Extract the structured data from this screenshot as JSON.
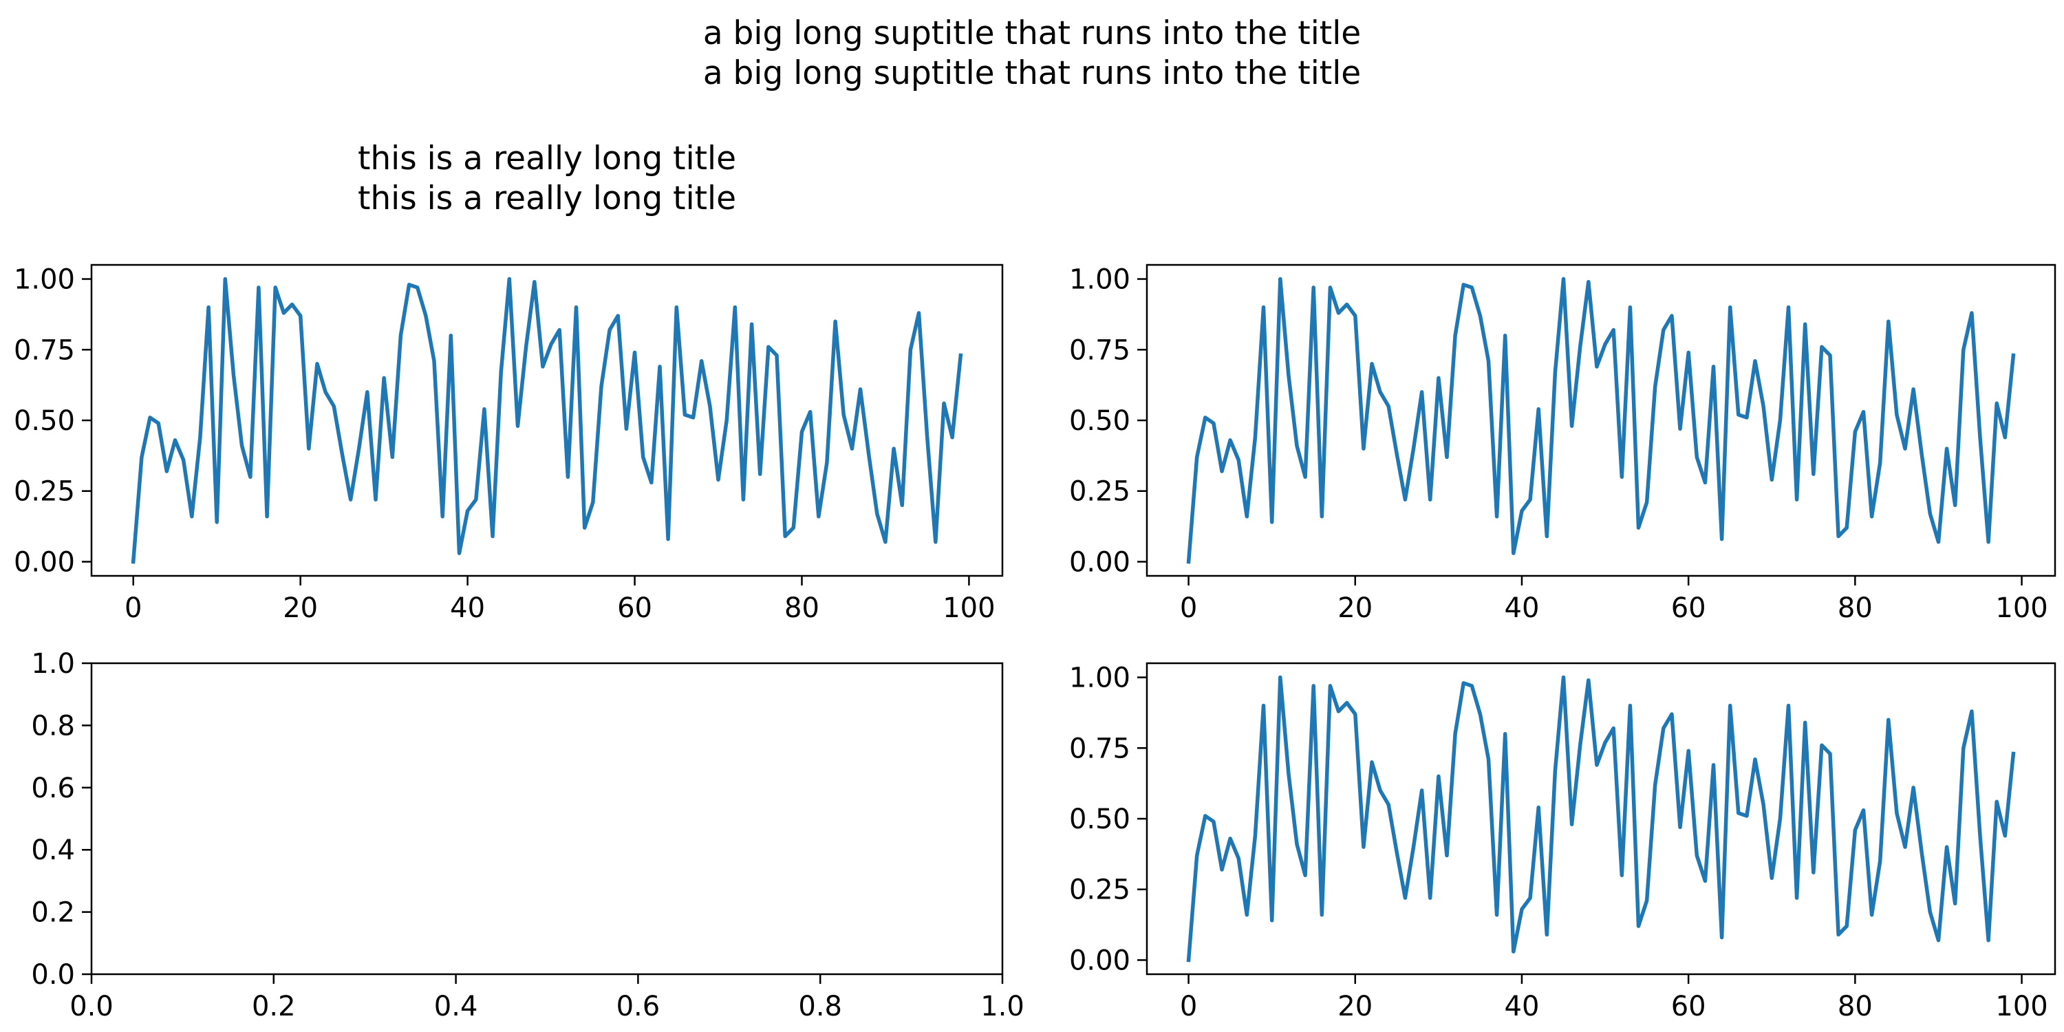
{
  "figure": {
    "suptitle_lines": [
      "a big long suptitle that runs into the title",
      "a big long suptitle that runs into the title"
    ]
  },
  "colors": {
    "series": "#1f77b4"
  },
  "chart_data": [
    {
      "type": "line",
      "position": "top-left",
      "title_lines": [
        "this is a really long title",
        "this is a really long title"
      ],
      "xlabel": "",
      "ylabel": "",
      "xlim": [
        -5,
        104
      ],
      "ylim": [
        -0.05,
        1.05
      ],
      "xticks": [
        0,
        20,
        40,
        60,
        80,
        100
      ],
      "xtick_labels": [
        "0",
        "20",
        "40",
        "60",
        "80",
        "100"
      ],
      "yticks": [
        0.0,
        0.25,
        0.5,
        0.75,
        1.0
      ],
      "ytick_labels": [
        "0.00",
        "0.25",
        "0.50",
        "0.75",
        "1.00"
      ],
      "grid": false,
      "series_ref": "shared"
    },
    {
      "type": "line",
      "position": "top-right",
      "xlabel": "",
      "ylabel": "",
      "xlim": [
        -5,
        104
      ],
      "ylim": [
        -0.05,
        1.05
      ],
      "xticks": [
        0,
        20,
        40,
        60,
        80,
        100
      ],
      "xtick_labels": [
        "0",
        "20",
        "40",
        "60",
        "80",
        "100"
      ],
      "yticks": [
        0.0,
        0.25,
        0.5,
        0.75,
        1.0
      ],
      "ytick_labels": [
        "0.00",
        "0.25",
        "0.50",
        "0.75",
        "1.00"
      ],
      "grid": false,
      "series_ref": "shared"
    },
    {
      "type": "line",
      "position": "bottom-left",
      "xlabel": "",
      "ylabel": "",
      "xlim": [
        0,
        1
      ],
      "ylim": [
        0,
        1
      ],
      "xticks": [
        0.0,
        0.2,
        0.4,
        0.6,
        0.8,
        1.0
      ],
      "xtick_labels": [
        "0.0",
        "0.2",
        "0.4",
        "0.6",
        "0.8",
        "1.0"
      ],
      "yticks": [
        0.0,
        0.2,
        0.4,
        0.6,
        0.8,
        1.0
      ],
      "ytick_labels": [
        "0.0",
        "0.2",
        "0.4",
        "0.6",
        "0.8",
        "1.0"
      ],
      "grid": false,
      "series_ref": null
    },
    {
      "type": "line",
      "position": "bottom-right",
      "xlabel": "",
      "ylabel": "",
      "xlim": [
        -5,
        104
      ],
      "ylim": [
        -0.05,
        1.05
      ],
      "xticks": [
        0,
        20,
        40,
        60,
        80,
        100
      ],
      "xtick_labels": [
        "0",
        "20",
        "40",
        "60",
        "80",
        "100"
      ],
      "yticks": [
        0.0,
        0.25,
        0.5,
        0.75,
        1.0
      ],
      "ytick_labels": [
        "0.00",
        "0.25",
        "0.50",
        "0.75",
        "1.00"
      ],
      "grid": false,
      "series_ref": "shared"
    }
  ],
  "shared_series": {
    "x_start": 0,
    "x_step": 1,
    "values": [
      0.0,
      0.37,
      0.51,
      0.49,
      0.32,
      0.43,
      0.36,
      0.16,
      0.44,
      0.9,
      0.14,
      1.0,
      0.66,
      0.41,
      0.3,
      0.97,
      0.16,
      0.97,
      0.88,
      0.91,
      0.87,
      0.4,
      0.7,
      0.6,
      0.55,
      0.38,
      0.22,
      0.4,
      0.6,
      0.22,
      0.65,
      0.37,
      0.8,
      0.98,
      0.97,
      0.87,
      0.71,
      0.16,
      0.8,
      0.03,
      0.18,
      0.22,
      0.54,
      0.09,
      0.67,
      1.0,
      0.48,
      0.76,
      0.99,
      0.69,
      0.77,
      0.82,
      0.3,
      0.9,
      0.12,
      0.21,
      0.62,
      0.82,
      0.87,
      0.47,
      0.74,
      0.37,
      0.28,
      0.69,
      0.08,
      0.9,
      0.52,
      0.51,
      0.71,
      0.55,
      0.29,
      0.5,
      0.9,
      0.22,
      0.84,
      0.31,
      0.76,
      0.73,
      0.09,
      0.12,
      0.46,
      0.53,
      0.16,
      0.35,
      0.85,
      0.52,
      0.4,
      0.61,
      0.38,
      0.17,
      0.07,
      0.4,
      0.2,
      0.75,
      0.88,
      0.44,
      0.07,
      0.56,
      0.44,
      0.73
    ]
  }
}
